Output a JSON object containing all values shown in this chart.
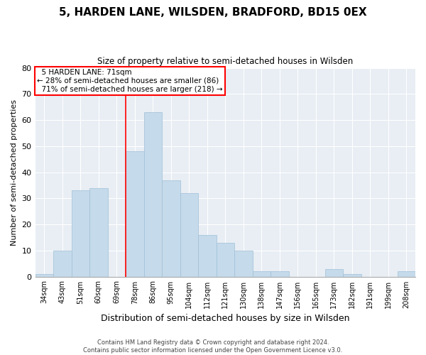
{
  "title": "5, HARDEN LANE, WILSDEN, BRADFORD, BD15 0EX",
  "subtitle": "Size of property relative to semi-detached houses in Wilsden",
  "xlabel": "Distribution of semi-detached houses by size in Wilsden",
  "ylabel": "Number of semi-detached properties",
  "categories": [
    "34sqm",
    "43sqm",
    "51sqm",
    "60sqm",
    "69sqm",
    "78sqm",
    "86sqm",
    "95sqm",
    "104sqm",
    "112sqm",
    "121sqm",
    "130sqm",
    "138sqm",
    "147sqm",
    "156sqm",
    "165sqm",
    "173sqm",
    "182sqm",
    "191sqm",
    "199sqm",
    "208sqm"
  ],
  "values": [
    1,
    10,
    33,
    34,
    0,
    48,
    63,
    37,
    32,
    16,
    13,
    10,
    2,
    2,
    0,
    0,
    3,
    1,
    0,
    0,
    2
  ],
  "bar_color": "#c5daea",
  "bar_edge_color": "#a0c0d8",
  "ylim": [
    0,
    80
  ],
  "yticks": [
    0,
    10,
    20,
    30,
    40,
    50,
    60,
    70,
    80
  ],
  "marker_index": 5,
  "marker_label": "5 HARDEN LANE: 71sqm",
  "pct_smaller": 28,
  "pct_larger": 71,
  "count_smaller": 86,
  "count_larger": 218,
  "bg_color": "#e8eef4",
  "grid_color": "#ffffff",
  "footnote1": "Contains HM Land Registry data © Crown copyright and database right 2024.",
  "footnote2": "Contains public sector information licensed under the Open Government Licence v3.0."
}
